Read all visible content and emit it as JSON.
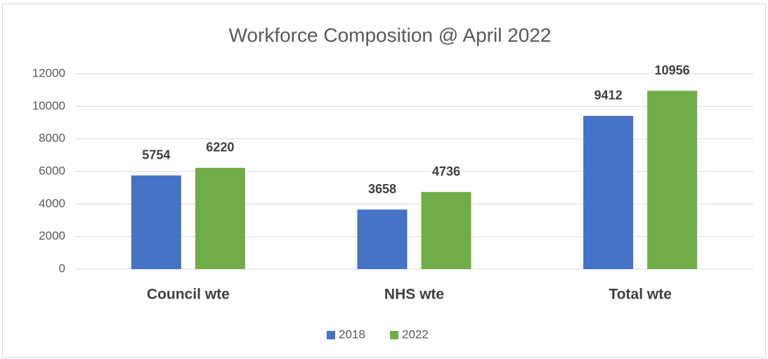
{
  "chart_data": {
    "type": "bar",
    "title": "Workforce Composition @ April 2022",
    "categories": [
      "Council wte",
      "NHS wte",
      "Total wte"
    ],
    "series": [
      {
        "name": "2018",
        "color": "#4472c4",
        "values": [
          5754,
          3658,
          9412
        ]
      },
      {
        "name": "2022",
        "color": "#70ad47",
        "values": [
          6220,
          4736,
          10956
        ]
      }
    ],
    "ylim": [
      0,
      12000
    ],
    "yticks": [
      0,
      2000,
      4000,
      6000,
      8000,
      10000,
      12000
    ],
    "grid": true,
    "legend": "bottom"
  }
}
